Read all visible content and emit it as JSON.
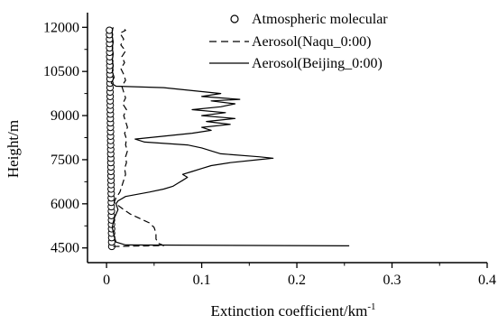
{
  "chart_data": {
    "type": "line",
    "title": "",
    "xlabel": "Extinction coefficient/km",
    "xlabel_superscript": "-1",
    "ylabel": "Height/m",
    "xlim": [
      -0.02,
      0.4
    ],
    "ylim": [
      4000,
      12500
    ],
    "x_ticks": [
      0,
      0.1,
      0.2,
      0.3,
      0.4
    ],
    "x_tick_labels": [
      "0",
      "0.1",
      "0.2",
      "0.3",
      "0.4"
    ],
    "y_ticks": [
      4500,
      6000,
      7500,
      9000,
      10500,
      12000
    ],
    "y_tick_labels": [
      "4500",
      "6000",
      "7500",
      "9000",
      "10500",
      "12000"
    ],
    "grid": false,
    "legend_position": "top-right",
    "legend": [
      "Atmospheric molecular",
      "Aerosol(Naqu_0:00)",
      "Aerosol(Beijing_0:00)"
    ],
    "series": [
      {
        "name": "Atmospheric molecular",
        "style": "circles",
        "points": [
          [
            0.0055,
            4550
          ],
          [
            0.0054,
            4700
          ],
          [
            0.0054,
            4850
          ],
          [
            0.0053,
            5000
          ],
          [
            0.0053,
            5150
          ],
          [
            0.0052,
            5300
          ],
          [
            0.0052,
            5450
          ],
          [
            0.0051,
            5600
          ],
          [
            0.0051,
            5750
          ],
          [
            0.005,
            5900
          ],
          [
            0.005,
            6050
          ],
          [
            0.0049,
            6200
          ],
          [
            0.0049,
            6350
          ],
          [
            0.0048,
            6500
          ],
          [
            0.0048,
            6650
          ],
          [
            0.0047,
            6800
          ],
          [
            0.0047,
            6950
          ],
          [
            0.0046,
            7100
          ],
          [
            0.0046,
            7250
          ],
          [
            0.0045,
            7400
          ],
          [
            0.0045,
            7550
          ],
          [
            0.0044,
            7700
          ],
          [
            0.0044,
            7850
          ],
          [
            0.0043,
            8000
          ],
          [
            0.0043,
            8150
          ],
          [
            0.0042,
            8300
          ],
          [
            0.0042,
            8450
          ],
          [
            0.0041,
            8600
          ],
          [
            0.0041,
            8750
          ],
          [
            0.004,
            8900
          ],
          [
            0.004,
            9050
          ],
          [
            0.0039,
            9200
          ],
          [
            0.0039,
            9350
          ],
          [
            0.0038,
            9500
          ],
          [
            0.0038,
            9650
          ],
          [
            0.0037,
            9800
          ],
          [
            0.0037,
            9950
          ],
          [
            0.0036,
            10100
          ],
          [
            0.0036,
            10250
          ],
          [
            0.0035,
            10400
          ],
          [
            0.0035,
            10550
          ],
          [
            0.0034,
            10700
          ],
          [
            0.0034,
            10850
          ],
          [
            0.0033,
            11000
          ],
          [
            0.0033,
            11150
          ],
          [
            0.0032,
            11300
          ],
          [
            0.0032,
            11450
          ],
          [
            0.0031,
            11600
          ],
          [
            0.0031,
            11750
          ],
          [
            0.003,
            11900
          ]
        ]
      },
      {
        "name": "Aerosol(Naqu_0:00)",
        "style": "dashed",
        "points": [
          [
            0.007,
            4550
          ],
          [
            0.06,
            4580
          ],
          [
            0.055,
            4650
          ],
          [
            0.052,
            4800
          ],
          [
            0.052,
            5000
          ],
          [
            0.05,
            5200
          ],
          [
            0.045,
            5350
          ],
          [
            0.035,
            5500
          ],
          [
            0.025,
            5650
          ],
          [
            0.018,
            5800
          ],
          [
            0.012,
            5950
          ],
          [
            0.008,
            6050
          ],
          [
            0.01,
            6200
          ],
          [
            0.014,
            6400
          ],
          [
            0.016,
            6600
          ],
          [
            0.018,
            6800
          ],
          [
            0.02,
            7000
          ],
          [
            0.019,
            7200
          ],
          [
            0.021,
            7400
          ],
          [
            0.02,
            7600
          ],
          [
            0.022,
            7800
          ],
          [
            0.02,
            8000
          ],
          [
            0.021,
            8200
          ],
          [
            0.019,
            8400
          ],
          [
            0.022,
            8600
          ],
          [
            0.02,
            8800
          ],
          [
            0.018,
            9000
          ],
          [
            0.021,
            9200
          ],
          [
            0.017,
            9400
          ],
          [
            0.02,
            9600
          ],
          [
            0.018,
            9800
          ],
          [
            0.016,
            10000
          ],
          [
            0.02,
            10200
          ],
          [
            0.018,
            10400
          ],
          [
            0.015,
            10600
          ],
          [
            0.019,
            10800
          ],
          [
            0.016,
            11000
          ],
          [
            0.02,
            11200
          ],
          [
            0.015,
            11400
          ],
          [
            0.018,
            11600
          ],
          [
            0.014,
            11800
          ],
          [
            0.02,
            11900
          ],
          [
            0.016,
            12000
          ]
        ]
      },
      {
        "name": "Aerosol(Beijing_0:00)",
        "style": "solid",
        "points": [
          [
            0.255,
            4570
          ],
          [
            0.02,
            4600
          ],
          [
            0.01,
            4700
          ],
          [
            0.008,
            4900
          ],
          [
            0.006,
            5200
          ],
          [
            0.008,
            5500
          ],
          [
            0.012,
            5800
          ],
          [
            0.01,
            6000
          ],
          [
            0.012,
            6100
          ],
          [
            0.02,
            6250
          ],
          [
            0.045,
            6400
          ],
          [
            0.06,
            6500
          ],
          [
            0.07,
            6600
          ],
          [
            0.075,
            6700
          ],
          [
            0.08,
            6800
          ],
          [
            0.085,
            6900
          ],
          [
            0.08,
            7000
          ],
          [
            0.09,
            7100
          ],
          [
            0.1,
            7200
          ],
          [
            0.11,
            7300
          ],
          [
            0.13,
            7400
          ],
          [
            0.16,
            7500
          ],
          [
            0.175,
            7550
          ],
          [
            0.16,
            7600
          ],
          [
            0.12,
            7700
          ],
          [
            0.11,
            7800
          ],
          [
            0.1,
            7900
          ],
          [
            0.085,
            8000
          ],
          [
            0.04,
            8100
          ],
          [
            0.03,
            8200
          ],
          [
            0.06,
            8300
          ],
          [
            0.09,
            8400
          ],
          [
            0.11,
            8500
          ],
          [
            0.1,
            8600
          ],
          [
            0.13,
            8700
          ],
          [
            0.105,
            8800
          ],
          [
            0.135,
            8900
          ],
          [
            0.1,
            9000
          ],
          [
            0.125,
            9100
          ],
          [
            0.09,
            9200
          ],
          [
            0.12,
            9300
          ],
          [
            0.135,
            9400
          ],
          [
            0.11,
            9500
          ],
          [
            0.14,
            9550
          ],
          [
            0.1,
            9650
          ],
          [
            0.12,
            9750
          ],
          [
            0.09,
            9850
          ],
          [
            0.06,
            9950
          ],
          [
            0.01,
            10000
          ],
          [
            0.005,
            10100
          ],
          [
            0.008,
            10300
          ],
          [
            0.006,
            10500
          ],
          [
            0.007,
            10700
          ],
          [
            0.006,
            10900
          ],
          [
            0.007,
            11100
          ],
          [
            0.006,
            11300
          ],
          [
            0.007,
            11500
          ],
          [
            0.006,
            11700
          ],
          [
            0.006,
            11900
          ],
          [
            0.007,
            12000
          ]
        ]
      }
    ]
  }
}
